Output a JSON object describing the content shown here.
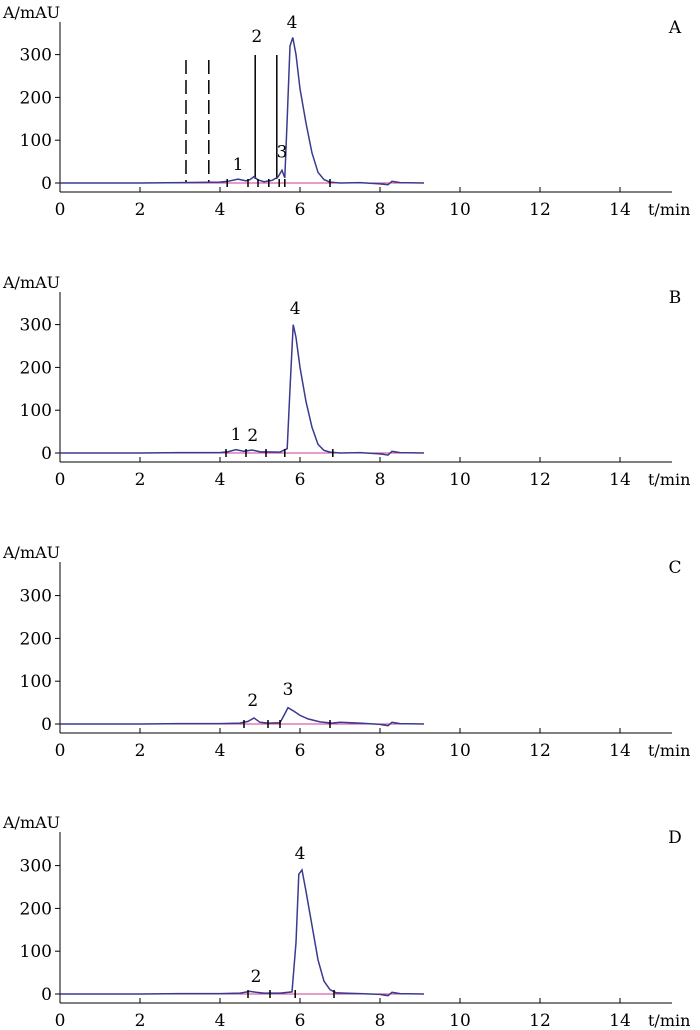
{
  "colors": {
    "trace": "#3a3a8f",
    "baseline": "#cc3b8f",
    "axis": "#000000"
  },
  "chart_data": [
    {
      "type": "line",
      "panel": "A",
      "ylabel": "A/mAU",
      "xlabel": "t/min",
      "xlim": [
        0,
        15.2
      ],
      "ylim": [
        -25,
        410
      ],
      "xticks": [
        0,
        2,
        4,
        6,
        8,
        10,
        12,
        14
      ],
      "yticks": [
        0,
        100,
        200,
        300
      ],
      "x": [
        0,
        1,
        2,
        3,
        4,
        4.2,
        4.45,
        4.65,
        4.75,
        4.85,
        4.95,
        5.1,
        5.3,
        5.45,
        5.55,
        5.62,
        5.68,
        5.75,
        5.82,
        5.9,
        6.0,
        6.15,
        6.3,
        6.45,
        6.6,
        6.75,
        7,
        7.5,
        8,
        8.2,
        8.3,
        8.5,
        9.1
      ],
      "y": [
        0,
        0,
        0,
        1,
        2,
        4,
        9,
        5,
        8,
        15,
        7,
        3,
        6,
        14,
        30,
        12,
        150,
        320,
        340,
        300,
        220,
        140,
        70,
        25,
        8,
        2,
        0,
        1,
        -2,
        -4,
        4,
        1,
        0
      ],
      "dashed_lines_x": [
        3.15,
        3.72
      ],
      "solid_lines_x": [
        4.88,
        5.42
      ],
      "integration_marks_x": [
        4.18,
        4.7,
        4.95,
        5.22,
        5.48,
        5.62,
        6.75
      ],
      "peak_labels": [
        {
          "label": "1",
          "x": 4.45,
          "y": 30
        },
        {
          "label": "2",
          "x": 4.92,
          "y": 330
        },
        {
          "label": "3",
          "x": 5.55,
          "y": 60
        },
        {
          "label": "4",
          "x": 5.8,
          "y": 362
        }
      ]
    },
    {
      "type": "line",
      "panel": "B",
      "ylabel": "A/mAU",
      "xlabel": "t/min",
      "xlim": [
        0,
        15.2
      ],
      "ylim": [
        -25,
        410
      ],
      "xticks": [
        0,
        2,
        4,
        6,
        8,
        10,
        12,
        14
      ],
      "yticks": [
        0,
        100,
        200,
        300
      ],
      "x": [
        0,
        1,
        2,
        3,
        4,
        4.2,
        4.4,
        4.6,
        4.8,
        5.0,
        5.5,
        5.68,
        5.75,
        5.83,
        5.9,
        6.0,
        6.15,
        6.3,
        6.45,
        6.6,
        6.75,
        7,
        7.5,
        8,
        8.2,
        8.3,
        8.5,
        9.1
      ],
      "y": [
        0,
        0,
        0,
        1,
        1,
        3,
        8,
        4,
        7,
        3,
        2,
        10,
        150,
        300,
        270,
        200,
        120,
        60,
        20,
        6,
        2,
        0,
        1,
        -2,
        -5,
        4,
        1,
        0
      ],
      "integration_marks_x": [
        4.15,
        4.65,
        5.15,
        5.62,
        6.82
      ],
      "peak_labels": [
        {
          "label": "1",
          "x": 4.4,
          "y": 30
        },
        {
          "label": "2",
          "x": 4.82,
          "y": 28
        },
        {
          "label": "4",
          "x": 5.88,
          "y": 325
        }
      ]
    },
    {
      "type": "line",
      "panel": "C",
      "ylabel": "A/mAU",
      "xlabel": "t/min",
      "xlim": [
        0,
        15.2
      ],
      "ylim": [
        -25,
        410
      ],
      "xticks": [
        0,
        2,
        4,
        6,
        8,
        10,
        12,
        14
      ],
      "yticks": [
        0,
        100,
        200,
        300
      ],
      "x": [
        0,
        1,
        2,
        3,
        4,
        4.5,
        4.7,
        4.85,
        5.0,
        5.2,
        5.5,
        5.6,
        5.7,
        5.85,
        6.0,
        6.2,
        6.5,
        6.8,
        7.0,
        7.5,
        8,
        8.2,
        8.3,
        8.5,
        9.1
      ],
      "y": [
        0,
        0,
        0,
        1,
        1,
        2,
        6,
        14,
        4,
        2,
        3,
        20,
        38,
        30,
        20,
        12,
        5,
        2,
        4,
        2,
        -1,
        -4,
        4,
        1,
        0
      ],
      "integration_marks_x": [
        4.6,
        5.2,
        5.5,
        6.75
      ],
      "peak_labels": [
        {
          "label": "2",
          "x": 4.82,
          "y": 42
        },
        {
          "label": "3",
          "x": 5.7,
          "y": 68
        }
      ]
    },
    {
      "type": "line",
      "panel": "D",
      "ylabel": "A/mAU",
      "xlabel": "t/min",
      "xlim": [
        0,
        15.2
      ],
      "ylim": [
        -25,
        410
      ],
      "xticks": [
        0,
        2,
        4,
        6,
        8,
        10,
        12,
        14
      ],
      "yticks": [
        0,
        100,
        200,
        300
      ],
      "x": [
        0,
        1,
        2,
        3,
        4,
        4.5,
        4.75,
        4.9,
        5.1,
        5.5,
        5.8,
        5.9,
        5.97,
        6.05,
        6.15,
        6.3,
        6.45,
        6.6,
        6.75,
        6.9,
        7.1,
        7.5,
        8,
        8.2,
        8.3,
        8.5,
        9.1
      ],
      "y": [
        0,
        0,
        0,
        1,
        1,
        2,
        6,
        4,
        2,
        2,
        5,
        120,
        280,
        290,
        240,
        160,
        80,
        30,
        10,
        3,
        2,
        1,
        -1,
        -4,
        4,
        1,
        0
      ],
      "integration_marks_x": [
        4.7,
        5.25,
        5.88,
        6.85
      ],
      "peak_labels": [
        {
          "label": "2",
          "x": 4.9,
          "y": 28
        },
        {
          "label": "4",
          "x": 6.0,
          "y": 315
        }
      ]
    }
  ]
}
